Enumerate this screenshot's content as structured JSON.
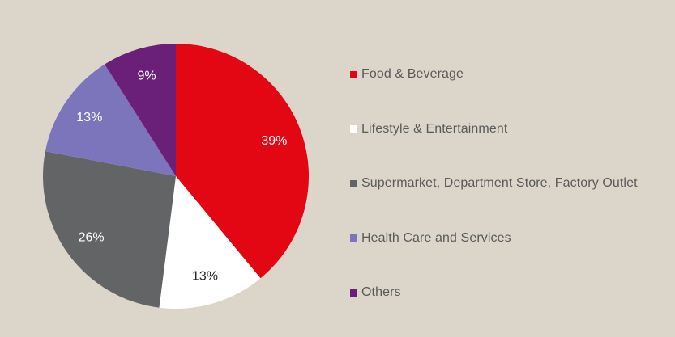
{
  "chart_data": {
    "type": "pie",
    "title": "",
    "categories": [
      "Food & Beverage",
      "Lifestyle & Entertainment",
      "Supermarket, Department Store, Factory Outlet",
      "Health Care and Services",
      "Others"
    ],
    "values": [
      39,
      13,
      26,
      13,
      9
    ],
    "value_labels": [
      "39%",
      "13%",
      "26%",
      "13%",
      "9%"
    ],
    "colors": [
      "#e30613",
      "#ffffff",
      "#636466",
      "#7d75bb",
      "#6a2078"
    ],
    "label_colors": [
      "#ffffff",
      "#222222",
      "#ffffff",
      "#ffffff",
      "#ffffff"
    ],
    "start_angle": "12 o'clock",
    "direction": "clockwise",
    "legend_position": "right"
  }
}
